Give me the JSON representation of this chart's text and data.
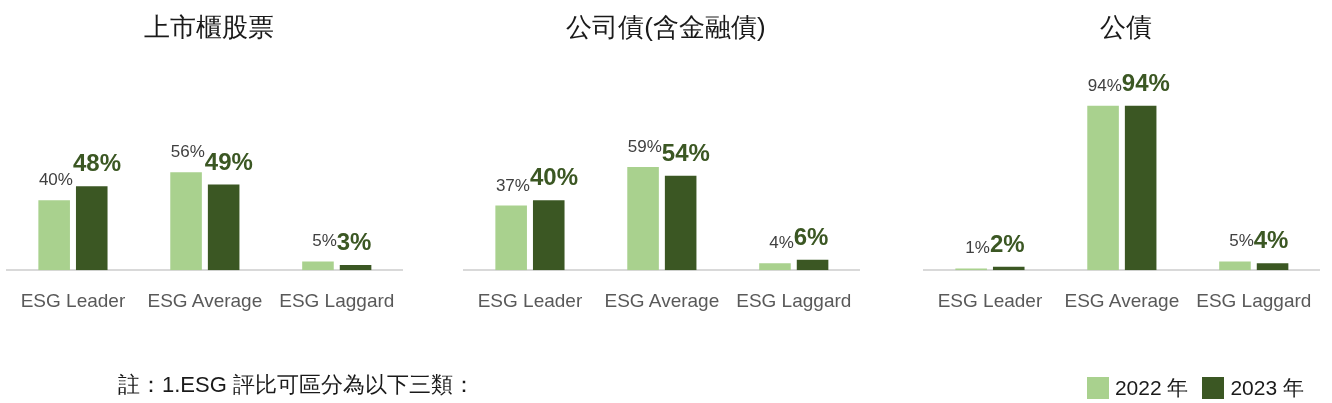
{
  "chart_data": [
    {
      "type": "bar",
      "title": "上市櫃股票",
      "categories": [
        "ESG Leader",
        "ESG Average",
        "ESG Laggard"
      ],
      "series": [
        {
          "color": "#a9d18e",
          "values": [
            40,
            56,
            5
          ],
          "value_labels": [
            "40%",
            "56%",
            "5%"
          ]
        },
        {
          "color": "#3b5723",
          "values": [
            48,
            49,
            3
          ],
          "value_labels": [
            "48%",
            "49%",
            "3%"
          ]
        }
      ],
      "tick_labels": "x",
      "annotations": [
        "註：1.ESG 評比可區分為以下三類："
      ]
    },
    {
      "type": "bar",
      "title": "公司債(含金融債)",
      "categories": [
        "ESG Leader",
        "ESG Average",
        "ESG Laggard"
      ],
      "series": [
        {
          "color": "#a9d18e",
          "values": [
            37,
            59,
            4
          ],
          "value_labels": [
            "37%",
            "59%",
            "4%"
          ]
        },
        {
          "color": "#3b5723",
          "values": [
            40,
            54,
            6
          ],
          "value_labels": [
            "40%",
            "54%",
            "6%"
          ]
        }
      ],
      "tick_labels": "x"
    },
    {
      "type": "bar",
      "title": "公債",
      "categories": [
        "ESG Leader",
        "ESG Average",
        "ESG Laggard"
      ],
      "series": [
        {
          "name": "2022 年",
          "color": "#a9d18e",
          "values": [
            1,
            94,
            5
          ],
          "value_labels": [
            "1%",
            "94%",
            "5%"
          ]
        },
        {
          "name": "2023 年",
          "color": "#3b5723",
          "values": [
            2,
            94,
            4
          ],
          "value_labels": [
            "2%",
            "94%",
            "4%"
          ]
        }
      ],
      "tick_labels": "x",
      "legend": "bottom right"
    }
  ]
}
